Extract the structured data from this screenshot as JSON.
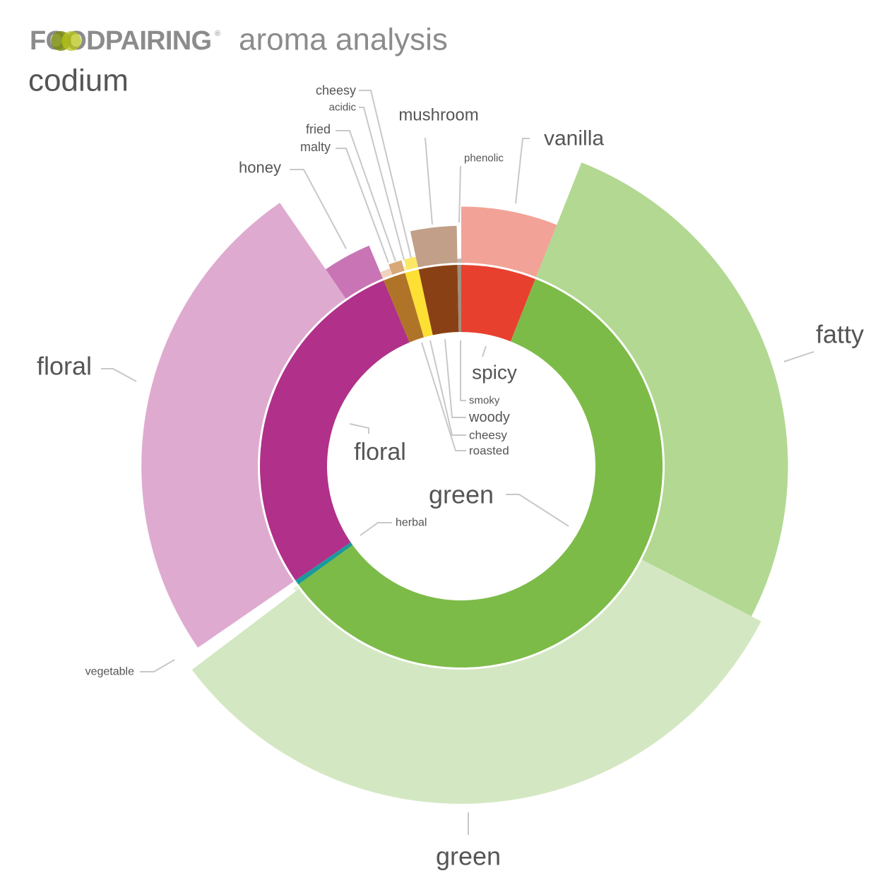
{
  "header": {
    "logo": "FOODPAIRING",
    "logo_mark": "®"
  },
  "chart_data": {
    "type": "sunburst",
    "title": "aroma analysis",
    "subtitle": "codium",
    "categories": [
      {
        "name": "spicy",
        "color": "#e8402f",
        "value": 6,
        "children": [
          {
            "name": "vanilla",
            "color": "#f2a296",
            "value": 6,
            "intensity": 41
          }
        ]
      },
      {
        "name": "green",
        "color": "#7dbb48",
        "value": 59,
        "children": [
          {
            "name": "fatty",
            "color": "#b2d892",
            "value": 26.6,
            "intensity": 90
          },
          {
            "name": "green",
            "color": "#d3e8c2",
            "value": 32.1,
            "intensity": 98
          },
          {
            "name": "vegetable",
            "color": "#e6f1db",
            "value": 0.3,
            "intensity": 3
          }
        ]
      },
      {
        "name": "herbal",
        "color": "#1a9a9a",
        "value": 0.4,
        "children": []
      },
      {
        "name": "floral",
        "color": "#b0308a",
        "value": 28.3,
        "children": [
          {
            "name": "floral",
            "color": "#dfaad0",
            "value": 25,
            "intensity": 85
          },
          {
            "name": "honey",
            "color": "#c975b5",
            "value": 3.3,
            "intensity": 26
          }
        ]
      },
      {
        "name": "roasted",
        "color": "#b07428",
        "value": 1.8,
        "children": [
          {
            "name": "malty",
            "color": "#f0d3bd",
            "value": 0.8,
            "intensity": 5
          },
          {
            "name": "fried",
            "color": "#d8a878",
            "value": 1.0,
            "intensity": 8
          }
        ]
      },
      {
        "name": "cheesy",
        "color": "#fde033",
        "value": 1.1,
        "children": [
          {
            "name": "acidic",
            "color": "#fff0a0",
            "value": 0.2,
            "intensity": 3
          },
          {
            "name": "cheesy",
            "color": "#fde866",
            "value": 0.9,
            "intensity": 8
          }
        ]
      },
      {
        "name": "woody",
        "color": "#8a4015",
        "value": 3.1,
        "children": [
          {
            "name": "mushroom",
            "color": "#c19f88",
            "value": 3.1,
            "intensity": 27
          }
        ]
      },
      {
        "name": "smoky",
        "color": "#a09080",
        "value": 0.3,
        "children": [
          {
            "name": "phenolic",
            "color": "#c0b8b0",
            "value": 0.3,
            "intensity": 3
          }
        ]
      }
    ]
  }
}
